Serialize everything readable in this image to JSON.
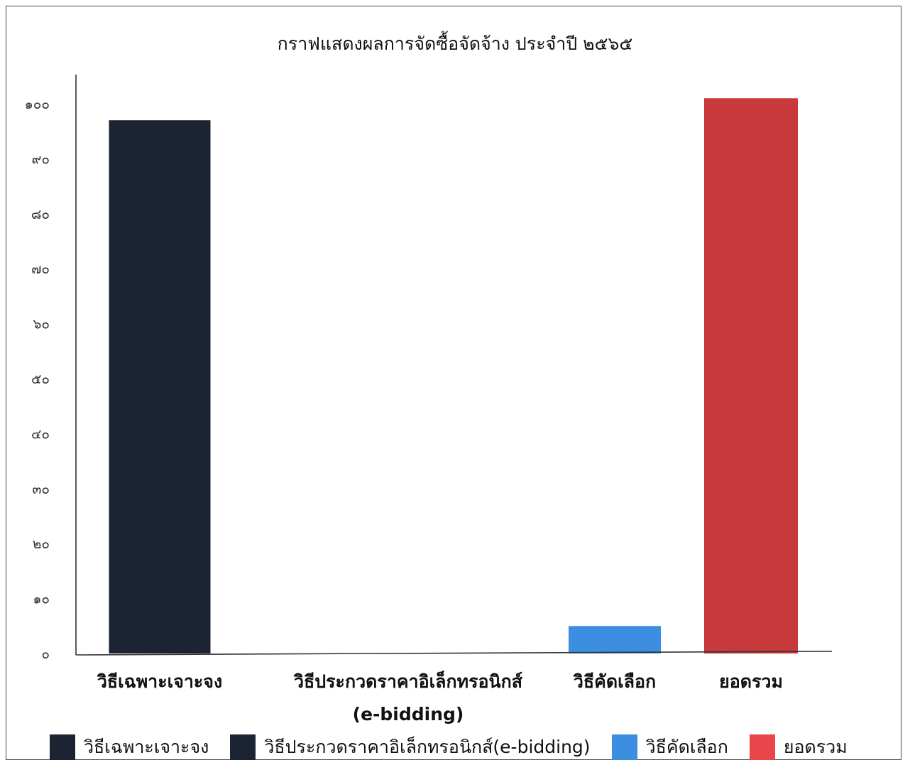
{
  "chart_data": {
    "type": "bar",
    "title": "กราฟแสดงผลการจัดซื้อจัดจ้าง ประจำปี ๒๕๖๕",
    "categories": [
      "วิธีเฉพาะเจาะจง",
      "วิธีประกวดราคาอิเล็กทรอนิกส์ (e-bidding)",
      "วิธีคัดเลือก",
      "ยอดรวม"
    ],
    "category_lines": [
      [
        "วิธีเฉพาะเจาะจง"
      ],
      [
        "วิธีประกวดราคาอิเล็กทรอนิกส์",
        "(e-bidding)"
      ],
      [
        "วิธีคัดเลือก"
      ],
      [
        "ยอดรวม"
      ]
    ],
    "values": [
      97,
      0,
      5,
      101
    ],
    "colors": [
      "#1c2433",
      "#1c2433",
      "#3b8ee0",
      "#c8393b"
    ],
    "ylim": [
      0,
      100
    ],
    "yticks": [
      0,
      10,
      20,
      30,
      40,
      50,
      60,
      70,
      80,
      90,
      100
    ],
    "ytick_labels": [
      "๐",
      "๑๐",
      "๒๐",
      "๓๐",
      "๔๐",
      "๕๐",
      "๖๐",
      "๗๐",
      "๘๐",
      "๙๐",
      "๑๐๐"
    ],
    "grid": false,
    "legend_position": "bottom",
    "legend": [
      {
        "label": "วิธีเฉพาะเจาะจง",
        "color": "#1c2433"
      },
      {
        "label": "วิธีประกวดราคาอิเล็กทรอนิกส์(e-bidding)",
        "color": "#1c2433"
      },
      {
        "label": "วิธีคัดเลือก",
        "color": "#3b8ee0"
      },
      {
        "label": "ยอดรวม",
        "color": "#e8464a"
      }
    ]
  }
}
